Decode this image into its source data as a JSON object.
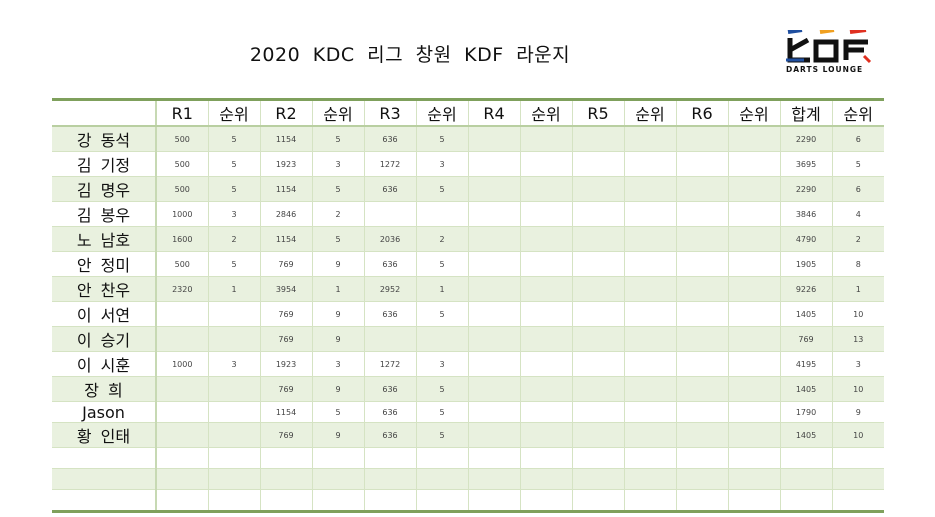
{
  "title": "2020 KDC 리그  창원 KDF 라운지",
  "logo": {
    "text": "KDF",
    "subtitle": "DARTS LOUNGE",
    "colors": [
      "#1f4fa0",
      "#f0a020",
      "#e03020",
      "#111111"
    ]
  },
  "headers": [
    "",
    "R1",
    "순위",
    "R2",
    "순위",
    "R3",
    "순위",
    "R4",
    "순위",
    "R5",
    "순위",
    "R6",
    "순위",
    "합계",
    "순위"
  ],
  "rows": [
    [
      "강 동석",
      "500",
      "5",
      "1154",
      "5",
      "636",
      "5",
      "",
      "",
      "",
      "",
      "",
      "",
      "2290",
      "6"
    ],
    [
      "김 기정",
      "500",
      "5",
      "1923",
      "3",
      "1272",
      "3",
      "",
      "",
      "",
      "",
      "",
      "",
      "3695",
      "5"
    ],
    [
      "김 명우",
      "500",
      "5",
      "1154",
      "5",
      "636",
      "5",
      "",
      "",
      "",
      "",
      "",
      "",
      "2290",
      "6"
    ],
    [
      "김 봉우",
      "1000",
      "3",
      "2846",
      "2",
      "",
      "",
      "",
      "",
      "",
      "",
      "",
      "",
      "3846",
      "4"
    ],
    [
      "노 남호",
      "1600",
      "2",
      "1154",
      "5",
      "2036",
      "2",
      "",
      "",
      "",
      "",
      "",
      "",
      "4790",
      "2"
    ],
    [
      "안 정미",
      "500",
      "5",
      "769",
      "9",
      "636",
      "5",
      "",
      "",
      "",
      "",
      "",
      "",
      "1905",
      "8"
    ],
    [
      "안 찬우",
      "2320",
      "1",
      "3954",
      "1",
      "2952",
      "1",
      "",
      "",
      "",
      "",
      "",
      "",
      "9226",
      "1"
    ],
    [
      "이 서연",
      "",
      "",
      "769",
      "9",
      "636",
      "5",
      "",
      "",
      "",
      "",
      "",
      "",
      "1405",
      "10"
    ],
    [
      "이 승기",
      "",
      "",
      "769",
      "9",
      "",
      "",
      "",
      "",
      "",
      "",
      "",
      "",
      "769",
      "13"
    ],
    [
      "이 시훈",
      "1000",
      "3",
      "1923",
      "3",
      "1272",
      "3",
      "",
      "",
      "",
      "",
      "",
      "",
      "4195",
      "3"
    ],
    [
      "장 희",
      "",
      "",
      "769",
      "9",
      "636",
      "5",
      "",
      "",
      "",
      "",
      "",
      "",
      "1405",
      "10"
    ],
    [
      "Jason",
      "",
      "",
      "1154",
      "5",
      "636",
      "5",
      "",
      "",
      "",
      "",
      "",
      "",
      "1790",
      "9"
    ],
    [
      "황 인태",
      "",
      "",
      "769",
      "9",
      "636",
      "5",
      "",
      "",
      "",
      "",
      "",
      "",
      "1405",
      "10"
    ],
    [
      "",
      "",
      "",
      "",
      "",
      "",
      "",
      "",
      "",
      "",
      "",
      "",
      "",
      "",
      ""
    ],
    [
      "",
      "",
      "",
      "",
      "",
      "",
      "",
      "",
      "",
      "",
      "",
      "",
      "",
      "",
      ""
    ],
    [
      "",
      "",
      "",
      "",
      "",
      "",
      "",
      "",
      "",
      "",
      "",
      "",
      "",
      "",
      ""
    ]
  ]
}
